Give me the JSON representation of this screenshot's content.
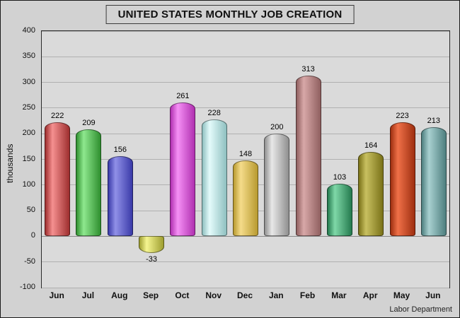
{
  "chart_data": {
    "type": "bar",
    "title": "UNITED STATES MONTHLY JOB CREATION",
    "ylabel": "thousands",
    "xlabel": "",
    "source": "Labor Department",
    "categories": [
      "Jun",
      "Jul",
      "Aug",
      "Sep",
      "Oct",
      "Nov",
      "Dec",
      "Jan",
      "Feb",
      "Mar",
      "Apr",
      "May",
      "Jun"
    ],
    "values": [
      222,
      209,
      156,
      -33,
      261,
      228,
      148,
      200,
      313,
      103,
      164,
      223,
      213
    ],
    "ylim": [
      -100,
      400
    ],
    "ytick_step": 50,
    "yticks": [
      400,
      350,
      300,
      250,
      200,
      150,
      100,
      50,
      0,
      -50,
      -100
    ],
    "grid": true,
    "legend": false,
    "bar_colors": [
      {
        "light": "#f59090",
        "dark": "#9e2f2f"
      },
      {
        "light": "#8ee88e",
        "dark": "#2f8f2f"
      },
      {
        "light": "#9090e8",
        "dark": "#3a3aa8"
      },
      {
        "light": "#f5f590",
        "dark": "#9e9e30"
      },
      {
        "light": "#f590f5",
        "dark": "#b030b0"
      },
      {
        "light": "#e4fbfb",
        "dark": "#8fc0c0"
      },
      {
        "light": "#f5dc8a",
        "dark": "#b89a30"
      },
      {
        "light": "#e8e8e8",
        "dark": "#8f8f8f"
      },
      {
        "light": "#d8a8a8",
        "dark": "#8f5f5f"
      },
      {
        "light": "#7fd8a8",
        "dark": "#247a4e"
      },
      {
        "light": "#c8c060",
        "dark": "#7a7218"
      },
      {
        "light": "#f07048",
        "dark": "#9e2f10"
      },
      {
        "light": "#a8d0d0",
        "dark": "#4e7f7f"
      }
    ]
  }
}
